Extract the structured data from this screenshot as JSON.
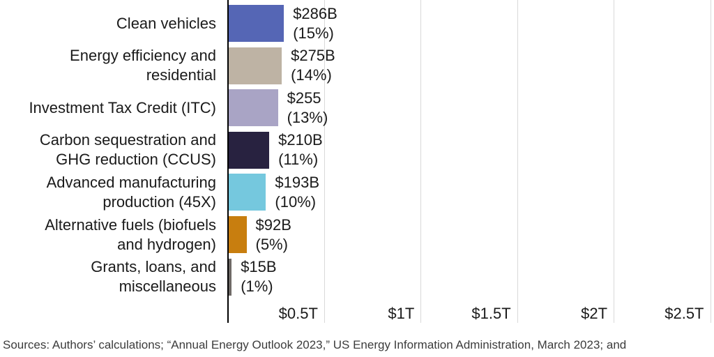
{
  "chart_data": {
    "type": "bar",
    "orientation": "horizontal",
    "unit": "billions of USD",
    "categories": [
      "Clean vehicles",
      "Energy efficiency and residential",
      "Investment Tax Credit (ITC)",
      "Carbon sequestration and GHG reduction (CCUS)",
      "Advanced manufacturing production (45X)",
      "Alternative fuels (biofuels and hydrogen)",
      "Grants, loans, and miscellaneous"
    ],
    "category_label_lines": [
      [
        "Clean vehicles"
      ],
      [
        "Energy efficiency and",
        "residential"
      ],
      [
        "Investment Tax Credit (ITC)"
      ],
      [
        "Carbon sequestration and",
        "GHG reduction (CCUS)"
      ],
      [
        "Advanced manufacturing",
        "production (45X)"
      ],
      [
        "Alternative fuels (biofuels",
        "and hydrogen)"
      ],
      [
        "Grants, loans, and",
        "miscellaneous"
      ]
    ],
    "values": [
      286,
      275,
      255,
      210,
      193,
      92,
      15
    ],
    "value_labels": [
      "$286B",
      "$275B",
      "$255",
      "$210B",
      "$193B",
      "$92B",
      "$15B"
    ],
    "pct_labels": [
      "(15%)",
      "(14%)",
      "(13%)",
      "(11%)",
      "(10%)",
      "(5%)",
      "(1%)"
    ],
    "bar_colors": [
      "#5566b5",
      "#beb3a4",
      "#a9a4c5",
      "#282240",
      "#75c8de",
      "#c87e0f",
      "#6f6a67"
    ],
    "x_ticks": [
      {
        "label": "$0.5T",
        "value": 500
      },
      {
        "label": "$1T",
        "value": 1000
      },
      {
        "label": "$1.5T",
        "value": 1500
      },
      {
        "label": "$2T",
        "value": 2000
      },
      {
        "label": "$2.5T",
        "value": 2500
      }
    ],
    "xlim_billions": [
      0,
      2520
    ],
    "grid": true,
    "legend": "none",
    "axis_color": "#000000",
    "gridline_color": "#d9d9d9",
    "text_color": "#1a1a1a",
    "source": "Sources: Authors’ calculations; “Annual Energy Outlook 2023,” US Energy Information Administration, March 2023; and"
  }
}
